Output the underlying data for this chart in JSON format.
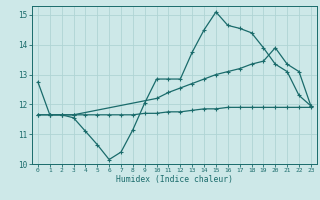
{
  "bg_color": "#cde8e8",
  "grid_color": "#b0d4d4",
  "line_color": "#1a6b6b",
  "xlabel": "Humidex (Indice chaleur)",
  "xlim": [
    -0.5,
    23.5
  ],
  "ylim": [
    10,
    15.3
  ],
  "yticks": [
    10,
    11,
    12,
    13,
    14,
    15
  ],
  "xticks": [
    0,
    1,
    2,
    3,
    4,
    5,
    6,
    7,
    8,
    9,
    10,
    11,
    12,
    13,
    14,
    15,
    16,
    17,
    18,
    19,
    20,
    21,
    22,
    23
  ],
  "s1_x": [
    0,
    1,
    2,
    3,
    4,
    5,
    6,
    7,
    8,
    9,
    10,
    11,
    12,
    13,
    14,
    15,
    16,
    17,
    18,
    19,
    20,
    21,
    22,
    23
  ],
  "s1_y": [
    12.75,
    11.65,
    11.65,
    11.55,
    11.1,
    10.65,
    10.15,
    10.4,
    11.15,
    12.05,
    12.85,
    12.85,
    12.85,
    13.75,
    14.5,
    15.1,
    14.65,
    14.55,
    14.4,
    13.9,
    13.35,
    13.1,
    12.3,
    11.95
  ],
  "s2_x": [
    0,
    1,
    2,
    3,
    4,
    5,
    6,
    7,
    8,
    9,
    10,
    11,
    12,
    13,
    14,
    15,
    16,
    17,
    18,
    19,
    20,
    21,
    22,
    23
  ],
  "s2_y": [
    11.65,
    11.65,
    11.65,
    11.65,
    11.65,
    11.65,
    11.65,
    11.65,
    11.65,
    11.7,
    11.7,
    11.75,
    11.75,
    11.8,
    11.85,
    11.85,
    11.9,
    11.9,
    11.9,
    11.9,
    11.9,
    11.9,
    11.9,
    11.9
  ],
  "s3_x": [
    0,
    1,
    2,
    3,
    10,
    11,
    12,
    13,
    14,
    15,
    16,
    17,
    18,
    19,
    20,
    21,
    22,
    23
  ],
  "s3_y": [
    11.65,
    11.65,
    11.65,
    11.65,
    12.2,
    12.4,
    12.55,
    12.7,
    12.85,
    13.0,
    13.1,
    13.2,
    13.35,
    13.45,
    13.9,
    13.35,
    13.1,
    11.95
  ]
}
